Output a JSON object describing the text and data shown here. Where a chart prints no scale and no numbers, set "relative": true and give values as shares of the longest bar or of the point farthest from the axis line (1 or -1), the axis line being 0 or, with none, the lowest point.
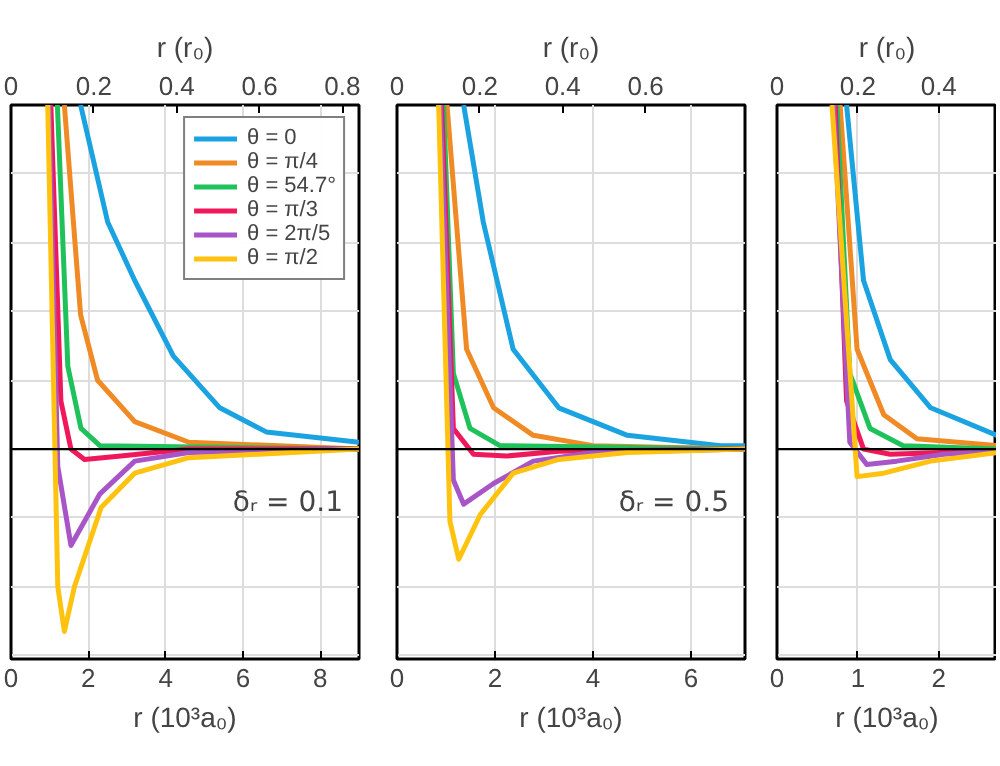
{
  "chart_data": [
    {
      "type": "line",
      "relative": true,
      "xlabel": "r (10³a₀)",
      "x2label": "r (r₀)",
      "xlim": [
        0,
        9
      ],
      "xticks": [
        0,
        2,
        4,
        6,
        8
      ],
      "x2lim": [
        0,
        0.84
      ],
      "x2ticks": [
        0,
        0.2,
        0.4,
        0.6,
        0.8
      ],
      "grid": true,
      "legend": "top right",
      "line_style": "solid",
      "annotations": [
        "δᵣ = 0.1"
      ],
      "series": [
        {
          "name": "θ = 0",
          "color": "#1aa3e0",
          "x": [
            1.8,
            2.5,
            3.2,
            4.2,
            5.4,
            6.6,
            9.0
          ],
          "values": [
            1,
            0.66,
            0.49,
            0.27,
            0.12,
            0.05,
            0.02
          ]
        },
        {
          "name": "θ = π/4",
          "color": "#f08a24",
          "x": [
            1.38,
            1.8,
            2.24,
            3.2,
            4.6,
            9.0
          ],
          "values": [
            1,
            0.39,
            0.2,
            0.08,
            0.02,
            0
          ]
        },
        {
          "name": "θ = 54.7°",
          "color": "#1fc25a",
          "x": [
            1.2,
            1.47,
            1.81,
            2.3,
            9.0
          ],
          "values": [
            1,
            0.24,
            0.06,
            0.01,
            0
          ]
        },
        {
          "name": "θ = π/3",
          "color": "#f0185a",
          "x": [
            1.03,
            1.29,
            1.55,
            1.9,
            2.84,
            4.6,
            9.0
          ],
          "values": [
            1,
            0.14,
            0,
            -0.03,
            -0.02,
            0,
            0
          ]
        },
        {
          "name": "θ = 2π/5",
          "color": "#a855c8",
          "x": [
            0.98,
            1.21,
            1.55,
            2.3,
            3.2,
            4.6,
            9.0
          ],
          "values": [
            1,
            -0.05,
            -0.28,
            -0.13,
            -0.035,
            -0.01,
            0
          ]
        },
        {
          "name": "θ = π/2",
          "color": "#ffc20e",
          "x": [
            0.95,
            1.21,
            1.38,
            1.64,
            2.33,
            3.2,
            4.6,
            9.0
          ],
          "values": [
            1,
            -0.4,
            -0.53,
            -0.4,
            -0.17,
            -0.07,
            -0.025,
            0
          ]
        }
      ]
    },
    {
      "type": "line",
      "relative": true,
      "xlabel": "r (10³a₀)",
      "x2label": "r (r₀)",
      "xlim": [
        0,
        7.1
      ],
      "xticks": [
        0,
        2,
        4,
        6
      ],
      "x2lim": [
        0,
        0.84
      ],
      "x2ticks": [
        0,
        0.2,
        0.4,
        0.6
      ],
      "grid": true,
      "line_style": "solid",
      "annotations": [
        "δᵣ = 0.5"
      ],
      "series": [
        {
          "color": "#1aa3e0",
          "x": [
            1.36,
            1.76,
            2.37,
            3.3,
            4.7,
            6.6,
            7.1
          ],
          "values": [
            1,
            0.66,
            0.29,
            0.12,
            0.04,
            0.01,
            0.01
          ]
        },
        {
          "color": "#f08a24",
          "x": [
            1.02,
            1.42,
            1.97,
            2.78,
            4.0,
            7.1
          ],
          "values": [
            1,
            0.29,
            0.12,
            0.04,
            0.01,
            0
          ]
        },
        {
          "color": "#1fc25a",
          "x": [
            0.95,
            1.15,
            1.49,
            2.1,
            7.1
          ],
          "values": [
            1,
            0.22,
            0.06,
            0.01,
            0
          ]
        },
        {
          "color": "#f0185a",
          "x": [
            0.91,
            1.15,
            1.56,
            2.24,
            3.3,
            7.1
          ],
          "values": [
            1,
            0.06,
            -0.015,
            -0.02,
            -0.006,
            0
          ]
        },
        {
          "color": "#a855c8",
          "x": [
            0.88,
            1.15,
            1.36,
            1.97,
            2.78,
            4.0,
            7.1
          ],
          "values": [
            1,
            -0.09,
            -0.16,
            -0.1,
            -0.035,
            -0.01,
            0
          ]
        },
        {
          "color": "#ffc20e",
          "x": [
            0.85,
            1.08,
            1.26,
            1.7,
            2.37,
            3.3,
            4.7,
            7.1
          ],
          "values": [
            1,
            -0.21,
            -0.32,
            -0.19,
            -0.07,
            -0.03,
            -0.01,
            0
          ]
        }
      ]
    },
    {
      "type": "line",
      "relative": true,
      "xlabel": "r (10³a₀)",
      "x2label": "r (r₀)",
      "xlim": [
        0,
        2.72
      ],
      "xticks": [
        0,
        1,
        2
      ],
      "x2lim": [
        0,
        0.544
      ],
      "x2ticks": [
        0,
        0.2,
        0.4
      ],
      "grid": true,
      "line_style": "solid",
      "series": [
        {
          "color": "#1aa3e0",
          "x": [
            0.86,
            1.07,
            1.4,
            1.9,
            2.72
          ],
          "values": [
            1,
            0.49,
            0.26,
            0.12,
            0.04
          ]
        },
        {
          "color": "#f08a24",
          "x": [
            0.78,
            0.99,
            1.32,
            1.73,
            2.72
          ],
          "values": [
            1,
            0.29,
            0.1,
            0.03,
            0.01
          ]
        },
        {
          "color": "#1fc25a",
          "x": [
            0.74,
            0.9,
            1.15,
            1.56,
            2.72
          ],
          "values": [
            1,
            0.22,
            0.06,
            0.01,
            0
          ]
        },
        {
          "color": "#f0185a",
          "x": [
            0.72,
            0.86,
            1.07,
            1.4,
            2.72
          ],
          "values": [
            1,
            0.14,
            0,
            -0.015,
            -0.005
          ]
        },
        {
          "color": "#a855c8",
          "x": [
            0.7,
            0.9,
            1.11,
            1.48,
            2.06,
            2.72
          ],
          "values": [
            1,
            0.02,
            -0.045,
            -0.035,
            -0.015,
            -0.005
          ]
        },
        {
          "color": "#ffc20e",
          "x": [
            0.68,
            0.99,
            1.32,
            1.9,
            2.72
          ],
          "values": [
            1,
            -0.08,
            -0.07,
            -0.035,
            -0.01
          ]
        }
      ]
    }
  ]
}
